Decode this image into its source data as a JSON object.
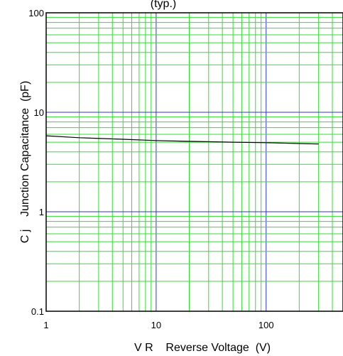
{
  "chart_data": {
    "type": "line",
    "title": "(typ.)",
    "xlabel": "V R    Reverse Voltage  (V)",
    "ylabel": "C j    Junction Capacitance  (pF)",
    "x_scale": "log",
    "y_scale": "log",
    "xlim": [
      1,
      500
    ],
    "ylim": [
      0.1,
      100
    ],
    "x_ticks": [
      1,
      10,
      100
    ],
    "x_tick_labels": [
      "1",
      "10",
      "100"
    ],
    "y_ticks": [
      0.1,
      1,
      10,
      100
    ],
    "y_tick_labels": [
      "0.1",
      "1",
      "10",
      "100"
    ],
    "grid": true,
    "colors": {
      "minor_grid": "#33dd33",
      "major_grid": "#3333cc",
      "curve": "#000000"
    },
    "series": [
      {
        "x": [
          1,
          2,
          5,
          10,
          20,
          50,
          100,
          200,
          300
        ],
        "y": [
          5.8,
          5.55,
          5.35,
          5.2,
          5.1,
          5.0,
          4.95,
          4.85,
          4.8
        ]
      }
    ]
  }
}
